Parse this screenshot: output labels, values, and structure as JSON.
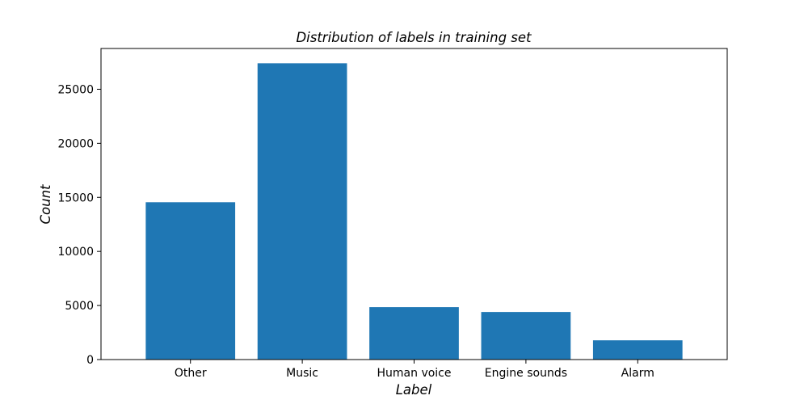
{
  "chart_data": {
    "type": "bar",
    "title": "Distribution of labels in training set",
    "xlabel": "Label",
    "ylabel": "Count",
    "categories": [
      "Other",
      "Music",
      "Human voice",
      "Engine sounds",
      "Alarm"
    ],
    "values": [
      14550,
      27400,
      4850,
      4400,
      1780
    ],
    "ylim": [
      0,
      28770
    ],
    "yticks": [
      0,
      5000,
      10000,
      15000,
      20000,
      25000
    ],
    "bar_color": "#1f77b4",
    "grid": false,
    "legend": "none"
  }
}
